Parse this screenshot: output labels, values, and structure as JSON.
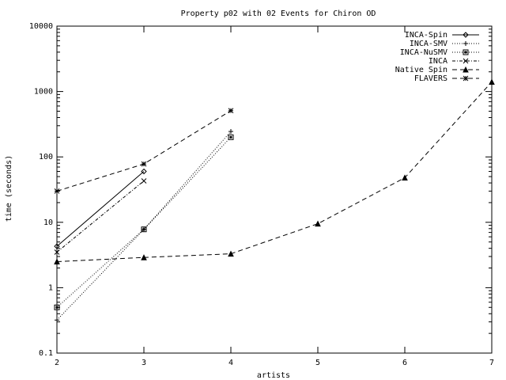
{
  "chart_data": {
    "type": "line",
    "title": "Property p02 with 02 Events for Chiron OD",
    "xlabel": "artists",
    "ylabel": "time (seconds)",
    "x_ticks": [
      2,
      3,
      4,
      5,
      6,
      7
    ],
    "x_tick_labels": [
      "2",
      "3",
      "4",
      "5",
      "6",
      "7"
    ],
    "xlim": [
      2,
      7
    ],
    "y_scale": "log",
    "ylim": [
      0.1,
      10000
    ],
    "y_ticks": [
      0.1,
      1,
      10,
      100,
      1000,
      10000
    ],
    "y_tick_labels": [
      "0.1",
      "1",
      "10",
      "100",
      "1000",
      "10000"
    ],
    "grid": false,
    "legend_position": "top-right",
    "series": [
      {
        "name": "INCA-Spin",
        "dash": "solid",
        "marker": "diamond",
        "x": [
          2,
          3
        ],
        "y": [
          4.3,
          60
        ]
      },
      {
        "name": "INCA-SMV",
        "dash": "dotted",
        "marker": "plus",
        "x": [
          2,
          3,
          4
        ],
        "y": [
          0.32,
          7.8,
          245
        ]
      },
      {
        "name": "INCA-NuSMV",
        "dash": "dotted",
        "marker": "square",
        "x": [
          2,
          3,
          4
        ],
        "y": [
          0.5,
          7.8,
          200
        ]
      },
      {
        "name": "INCA",
        "dash": "dashdot",
        "marker": "x",
        "x": [
          2,
          3
        ],
        "y": [
          3.5,
          43
        ]
      },
      {
        "name": "Native Spin",
        "dash": "dashed",
        "marker": "triangle",
        "x": [
          2,
          3,
          4,
          5,
          6,
          7
        ],
        "y": [
          2.5,
          2.9,
          3.3,
          9.5,
          48,
          1400
        ]
      },
      {
        "name": "FLAVERS",
        "dash": "dashed",
        "marker": "star",
        "x": [
          2,
          3,
          4
        ],
        "y": [
          30,
          78,
          510
        ]
      }
    ]
  }
}
